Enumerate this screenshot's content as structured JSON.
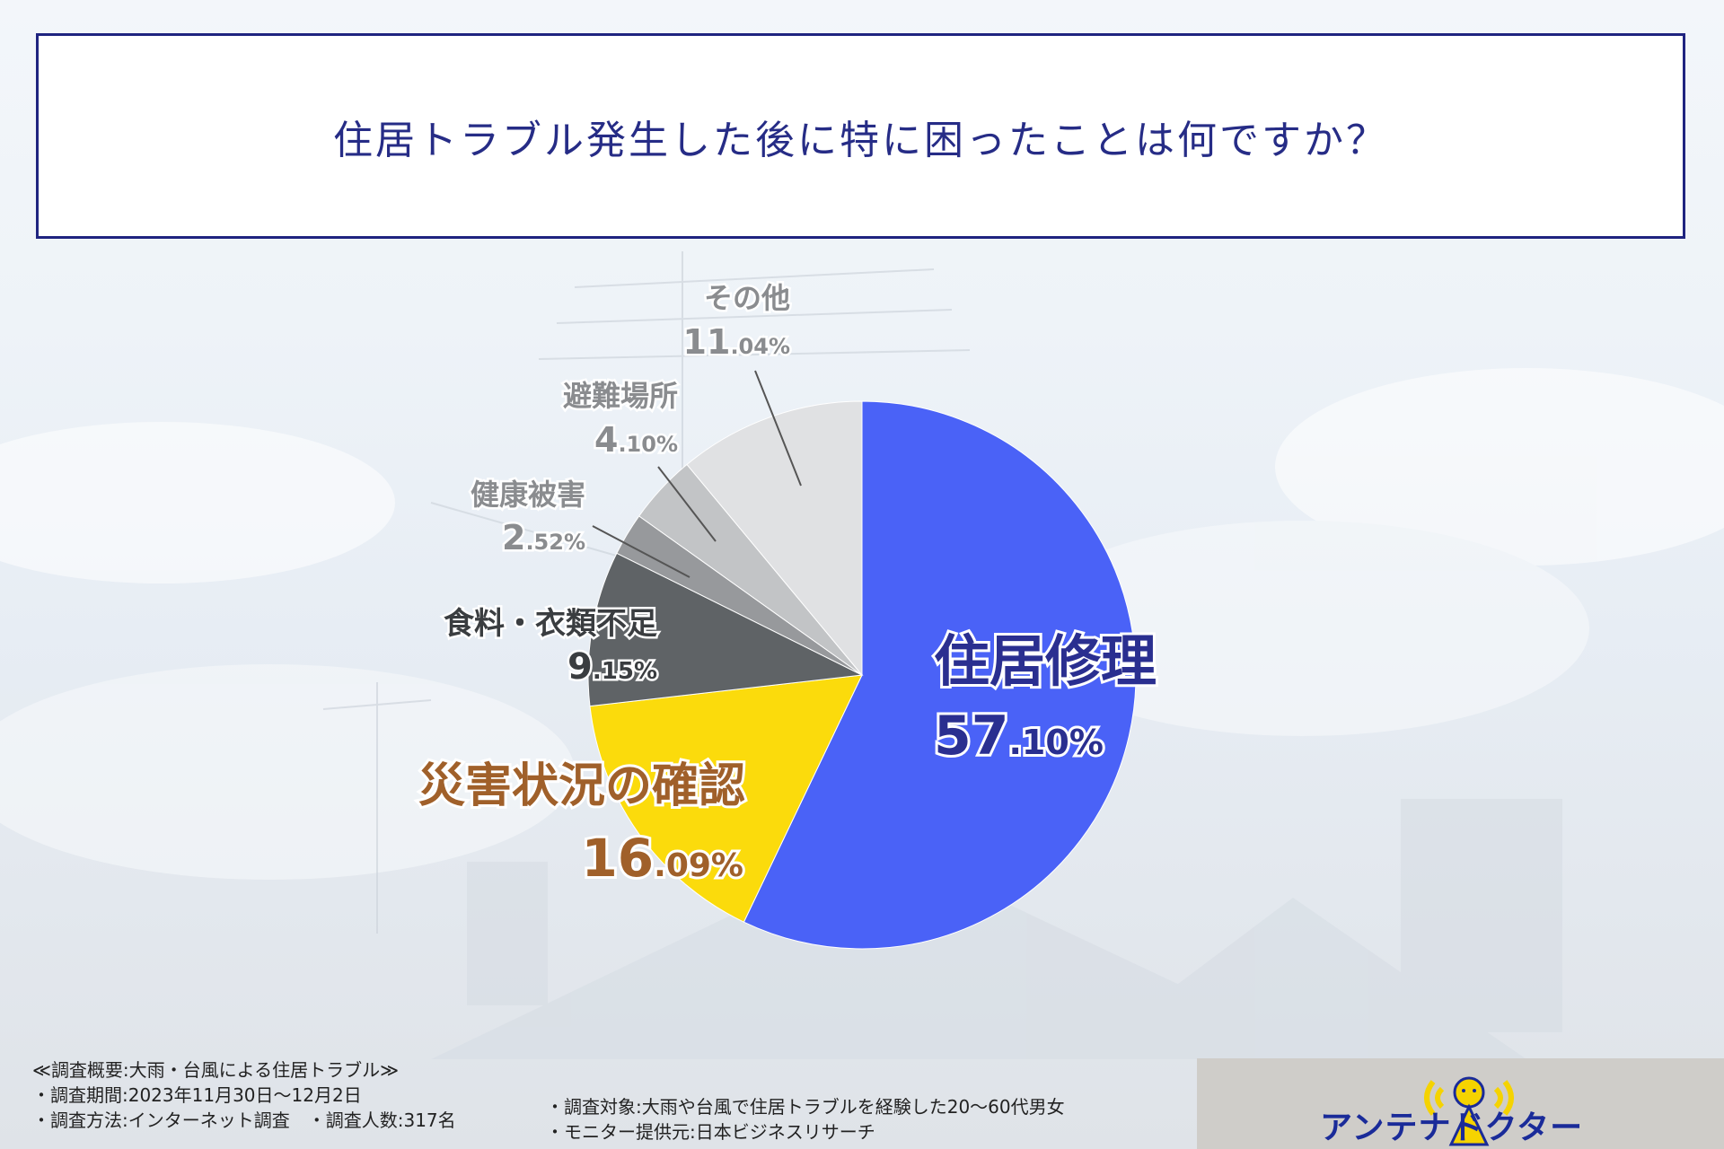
{
  "title": "住居トラブル発生した後に特に困ったことは何ですか？",
  "chart_data": {
    "type": "pie",
    "title": "住居トラブル発生した後に特に困ったことは何ですか？",
    "unit": "%",
    "slices": [
      {
        "label": "住居修理",
        "value": 57.1,
        "int": "57",
        "dec": ".10%",
        "color": "#4a62f7"
      },
      {
        "label": "災害状況の確認",
        "value": 16.09,
        "int": "16",
        "dec": ".09%",
        "color": "#fbdb0c"
      },
      {
        "label": "食料・衣類不足",
        "value": 9.15,
        "int": "9",
        "dec": ".15%",
        "color": "#5f6366"
      },
      {
        "label": "健康被害",
        "value": 2.52,
        "int": "2",
        "dec": ".52%",
        "color": "#97999c"
      },
      {
        "label": "避難場所",
        "value": 4.1,
        "int": "4",
        "dec": ".10%",
        "color": "#c2c4c6"
      },
      {
        "label": "その他",
        "value": 11.04,
        "int": "11",
        "dec": ".04%",
        "color": "#e0e1e3"
      }
    ]
  },
  "footer": {
    "heading": "≪調査概要:大雨・台風による住居トラブル≫",
    "period": "・調査期間:2023年11月30日〜12月2日",
    "method": "・調査方法:インターネット調査　・調査人数:317名",
    "target": "・調査対象:大雨や台風で住居トラブルを経験した20〜60代男女",
    "provider": "・モニター提供元:日本ビジネスリサーチ"
  },
  "logo": {
    "text": "アンテナドクター",
    "icon": "antenna-mascot-icon",
    "color": "#1a2b99",
    "accent": "#f5d300"
  }
}
